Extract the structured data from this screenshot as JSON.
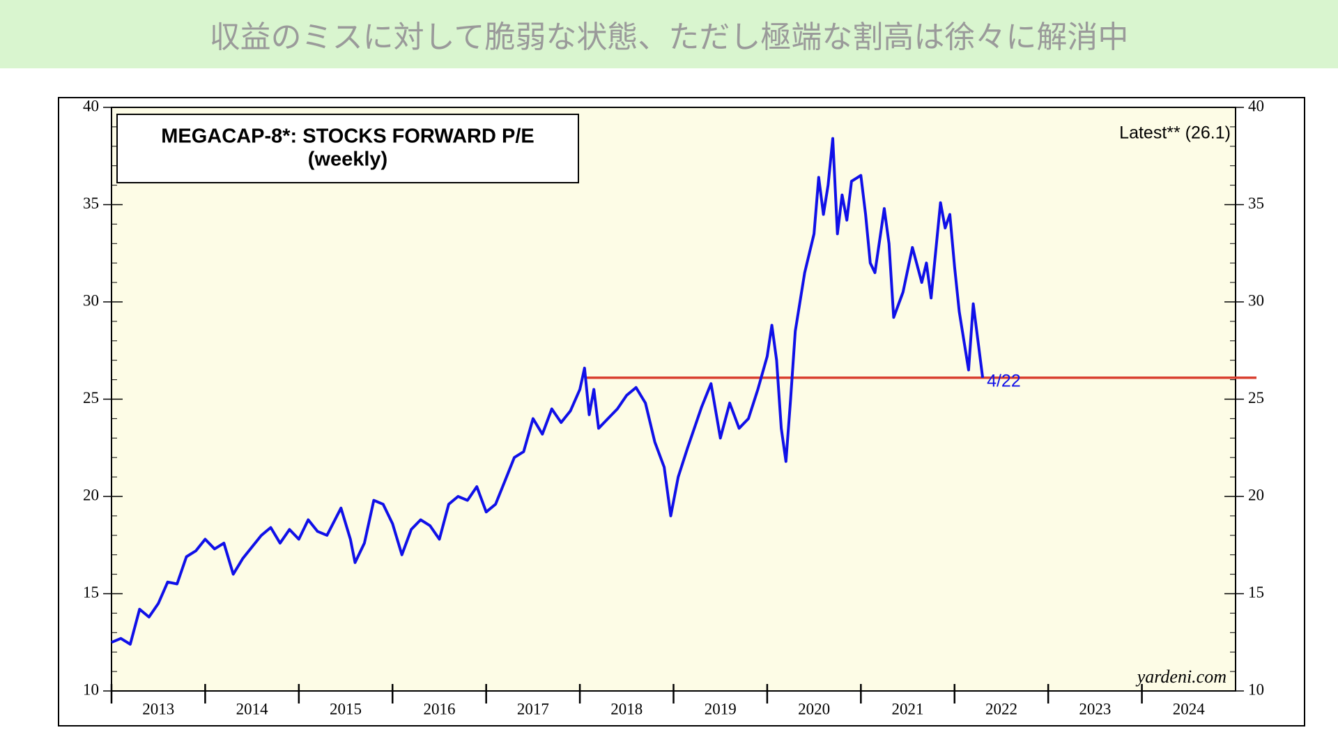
{
  "header": {
    "title": "収益のミスに対して脆弱な状態、ただし極端な割高は徐々に解消中"
  },
  "chart_data": {
    "type": "line",
    "title": "MEGACAP-8*: STOCKS FORWARD P/E",
    "subtitle": "(weekly)",
    "annotations": {
      "latest": "Latest** (26.1)",
      "date": "4/22",
      "source": "yardeni.com"
    },
    "xlim": [
      2013,
      2025
    ],
    "xticks": [
      2013,
      2014,
      2015,
      2016,
      2017,
      2018,
      2019,
      2020,
      2021,
      2022,
      2023,
      2024
    ],
    "ylim": [
      10,
      40
    ],
    "yticks": [
      10,
      15,
      20,
      25,
      30,
      35,
      40
    ],
    "reference_line": {
      "value": 26.1,
      "x_start": 2018.05,
      "color": "#d94030"
    },
    "series": [
      {
        "name": "Forward P/E",
        "color": "#1010e8",
        "x": [
          2013.0,
          2013.1,
          2013.2,
          2013.3,
          2013.4,
          2013.5,
          2013.6,
          2013.7,
          2013.8,
          2013.9,
          2014.0,
          2014.1,
          2014.2,
          2014.3,
          2014.4,
          2014.5,
          2014.6,
          2014.7,
          2014.8,
          2014.9,
          2015.0,
          2015.1,
          2015.2,
          2015.3,
          2015.45,
          2015.55,
          2015.6,
          2015.7,
          2015.8,
          2015.9,
          2016.0,
          2016.1,
          2016.2,
          2016.3,
          2016.4,
          2016.5,
          2016.6,
          2016.7,
          2016.8,
          2016.9,
          2017.0,
          2017.1,
          2017.2,
          2017.3,
          2017.4,
          2017.5,
          2017.6,
          2017.7,
          2017.8,
          2017.9,
          2018.0,
          2018.05,
          2018.1,
          2018.15,
          2018.2,
          2018.3,
          2018.4,
          2018.5,
          2018.6,
          2018.7,
          2018.8,
          2018.9,
          2018.97,
          2019.05,
          2019.15,
          2019.3,
          2019.4,
          2019.5,
          2019.6,
          2019.7,
          2019.8,
          2019.9,
          2020.0,
          2020.05,
          2020.1,
          2020.15,
          2020.2,
          2020.25,
          2020.3,
          2020.4,
          2020.5,
          2020.55,
          2020.6,
          2020.65,
          2020.7,
          2020.75,
          2020.8,
          2020.85,
          2020.9,
          2021.0,
          2021.05,
          2021.1,
          2021.15,
          2021.25,
          2021.3,
          2021.35,
          2021.45,
          2021.55,
          2021.65,
          2021.7,
          2021.75,
          2021.85,
          2021.9,
          2021.95,
          2022.0,
          2022.05,
          2022.1,
          2022.15,
          2022.2,
          2022.3
        ],
        "values": [
          12.5,
          12.7,
          12.4,
          14.2,
          13.8,
          14.5,
          15.6,
          15.5,
          16.9,
          17.2,
          17.8,
          17.3,
          17.6,
          16.0,
          16.8,
          17.4,
          18.0,
          18.4,
          17.6,
          18.3,
          17.8,
          18.8,
          18.2,
          18.0,
          19.4,
          17.8,
          16.6,
          17.6,
          19.8,
          19.6,
          18.6,
          17.0,
          18.3,
          18.8,
          18.5,
          17.8,
          19.6,
          20.0,
          19.8,
          20.5,
          19.2,
          19.6,
          20.8,
          22.0,
          22.3,
          24.0,
          23.2,
          24.5,
          23.8,
          24.4,
          25.5,
          26.6,
          24.2,
          25.5,
          23.5,
          24.0,
          24.5,
          25.2,
          25.6,
          24.8,
          22.8,
          21.5,
          19.0,
          21.0,
          22.5,
          24.6,
          25.8,
          23.0,
          24.8,
          23.5,
          24.0,
          25.5,
          27.2,
          28.8,
          27.0,
          23.5,
          21.8,
          25.0,
          28.5,
          31.5,
          33.5,
          36.4,
          34.5,
          36.0,
          38.4,
          33.5,
          35.5,
          34.2,
          36.2,
          36.5,
          34.5,
          32.0,
          31.5,
          34.8,
          33.0,
          29.2,
          30.5,
          32.8,
          31.0,
          32.0,
          30.2,
          35.1,
          33.8,
          34.5,
          31.8,
          29.5,
          28.0,
          26.5,
          29.9,
          26.1
        ]
      }
    ]
  }
}
